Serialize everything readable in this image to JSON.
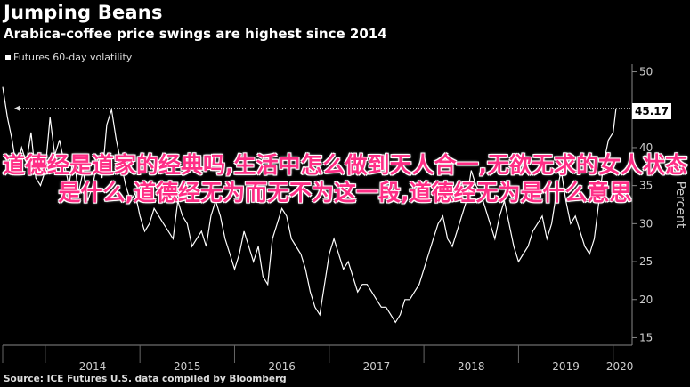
{
  "header": {
    "title": "Jumping Beans",
    "subtitle": "Arabica-coffee price swings are highest since 2014"
  },
  "legend": {
    "label": "Futures 60-day volatility"
  },
  "source": "Source: ICE Futures U.S. data compiled by Bloomberg",
  "overlay_text": "道德经是道家的经典吗,生活中怎么做到天人合一,无欲无求的女人状态是什么,道德经无为而无不为这一段,道德经无为是什么意思",
  "last_value_label": "45.17",
  "colors": {
    "background": "#000000",
    "line": "#ffffff",
    "overlay": "#ff2e86"
  },
  "chart_data": {
    "type": "line",
    "title": "Jumping Beans",
    "subtitle": "Arabica-coffee price swings are highest since 2014",
    "ylabel": "Percent",
    "xlabel": "",
    "ylim": [
      14,
      51
    ],
    "y_ticks": [
      15,
      20,
      25,
      30,
      35,
      40,
      45,
      50
    ],
    "x_ticks": [
      "2014",
      "2015",
      "2016",
      "2017",
      "2018",
      "2019",
      "2020"
    ],
    "grid": false,
    "legend_position": "top-left",
    "reference_line": 45.17,
    "last_value": 45.17,
    "series": [
      {
        "name": "Futures 60-day volatility",
        "x": [
          2013.55,
          2013.6,
          2013.65,
          2013.7,
          2013.75,
          2013.8,
          2013.85,
          2013.9,
          2013.95,
          2014.0,
          2014.05,
          2014.1,
          2014.15,
          2014.2,
          2014.25,
          2014.3,
          2014.35,
          2014.4,
          2014.45,
          2014.5,
          2014.55,
          2014.6,
          2014.65,
          2014.7,
          2014.75,
          2014.8,
          2014.85,
          2014.9,
          2014.95,
          2015.0,
          2015.05,
          2015.1,
          2015.15,
          2015.2,
          2015.25,
          2015.3,
          2015.35,
          2015.4,
          2015.45,
          2015.5,
          2015.55,
          2015.6,
          2015.65,
          2015.7,
          2015.75,
          2015.8,
          2015.85,
          2015.9,
          2015.95,
          2016.0,
          2016.05,
          2016.1,
          2016.15,
          2016.2,
          2016.25,
          2016.3,
          2016.35,
          2016.4,
          2016.45,
          2016.5,
          2016.55,
          2016.6,
          2016.65,
          2016.7,
          2016.75,
          2016.8,
          2016.85,
          2016.9,
          2016.95,
          2017.0,
          2017.05,
          2017.1,
          2017.15,
          2017.2,
          2017.25,
          2017.3,
          2017.35,
          2017.4,
          2017.45,
          2017.5,
          2017.55,
          2017.6,
          2017.65,
          2017.7,
          2017.75,
          2017.8,
          2017.85,
          2017.9,
          2017.95,
          2018.0,
          2018.05,
          2018.1,
          2018.15,
          2018.2,
          2018.25,
          2018.3,
          2018.35,
          2018.4,
          2018.45,
          2018.5,
          2018.55,
          2018.6,
          2018.65,
          2018.7,
          2018.75,
          2018.8,
          2018.85,
          2018.9,
          2018.95,
          2019.0,
          2019.05,
          2019.1,
          2019.15,
          2019.2,
          2019.25,
          2019.3,
          2019.35,
          2019.4,
          2019.45,
          2019.5,
          2019.55,
          2019.6,
          2019.65,
          2019.7,
          2019.75,
          2019.8,
          2019.85,
          2019.9,
          2019.95,
          2020.0,
          2020.03
        ],
        "values": [
          48,
          44,
          41,
          37,
          40,
          38,
          42,
          36,
          35,
          37,
          44,
          39,
          41,
          38,
          35,
          39,
          34,
          37,
          33,
          35,
          38,
          36,
          43,
          45,
          41,
          38,
          35,
          33,
          34,
          31,
          29,
          30,
          32,
          31,
          30,
          29,
          28,
          33,
          31,
          30,
          27,
          28,
          29,
          27,
          31,
          33,
          31,
          28,
          26,
          24,
          26,
          29,
          27,
          25,
          27,
          23,
          22,
          28,
          30,
          32,
          31,
          28,
          27,
          26,
          24,
          21,
          19,
          18,
          22,
          26,
          28,
          26,
          24,
          25,
          23,
          21,
          22,
          22,
          21,
          20,
          19,
          19,
          18,
          17,
          18,
          20,
          20,
          21,
          22,
          24,
          26,
          28,
          30,
          31,
          28,
          27,
          29,
          31,
          33,
          37,
          35,
          34,
          32,
          30,
          28,
          31,
          33,
          30,
          27,
          25,
          26,
          27,
          29,
          30,
          31,
          28,
          30,
          34,
          37,
          33,
          30,
          31,
          29,
          27,
          26,
          28,
          33,
          38,
          41,
          42,
          45.17
        ]
      }
    ]
  }
}
